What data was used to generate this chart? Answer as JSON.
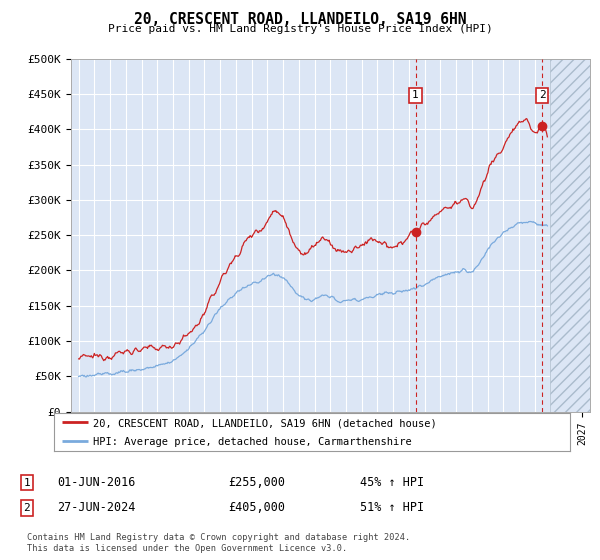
{
  "title": "20, CRESCENT ROAD, LLANDEILO, SA19 6HN",
  "subtitle": "Price paid vs. HM Land Registry's House Price Index (HPI)",
  "ytick_values": [
    0,
    50000,
    100000,
    150000,
    200000,
    250000,
    300000,
    350000,
    400000,
    450000,
    500000
  ],
  "xlim": [
    1994.5,
    2027.5
  ],
  "ylim": [
    0,
    500000
  ],
  "background_color": "#ffffff",
  "plot_bg_color": "#dce6f5",
  "grid_color": "#ffffff",
  "red_line_color": "#cc2222",
  "blue_line_color": "#7aaadd",
  "dashed_line_color": "#cc2222",
  "marker1_year": 2016.42,
  "marker2_year": 2024.48,
  "marker1_price": 255000,
  "marker2_price": 405000,
  "hatch_start": 2025.0,
  "legend_label_red": "20, CRESCENT ROAD, LLANDEILO, SA19 6HN (detached house)",
  "legend_label_blue": "HPI: Average price, detached house, Carmarthenshire",
  "annotation1_date": "01-JUN-2016",
  "annotation1_price": "£255,000",
  "annotation1_pct": "45% ↑ HPI",
  "annotation2_date": "27-JUN-2024",
  "annotation2_price": "£405,000",
  "annotation2_pct": "51% ↑ HPI",
  "footer": "Contains HM Land Registry data © Crown copyright and database right 2024.\nThis data is licensed under the Open Government Licence v3.0."
}
